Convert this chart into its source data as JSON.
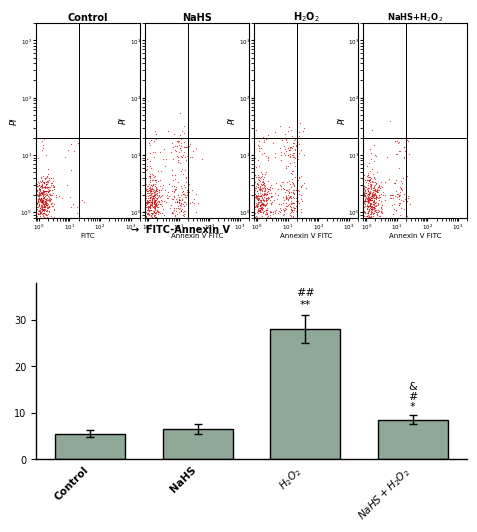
{
  "bar_categories": [
    "Control",
    "NaHS",
    "H$_2$O$_2$",
    "NaHS+H$_2$O$_2$"
  ],
  "bar_values": [
    5.5,
    6.5,
    28.0,
    8.5
  ],
  "bar_errors": [
    0.8,
    1.0,
    3.0,
    1.0
  ],
  "bar_color": "#8fa898",
  "bar_edgecolor": "#000000",
  "annotations": {
    "H2O2": [
      "**",
      "##"
    ],
    "NaHS+H2O2": [
      "*",
      "#",
      "&"
    ]
  },
  "ylabel": "",
  "ylim": [
    0,
    38
  ],
  "yticks": [
    0,
    10,
    20,
    30
  ],
  "scatter_titles": [
    "Control",
    "NaHS",
    "H$_2$O$_2$",
    "NaHS+H$_2$O$_2$"
  ],
  "scatter_dot_color": "#cc0000",
  "arrow_label": "FITC-Annexin V",
  "pi_label": "PI",
  "annex_label": "Annexin V FITC",
  "background_color": "#ffffff",
  "title_fontsize": 9,
  "tick_fontsize": 6,
  "bar_fontsize": 8,
  "annotation_fontsize": 8
}
